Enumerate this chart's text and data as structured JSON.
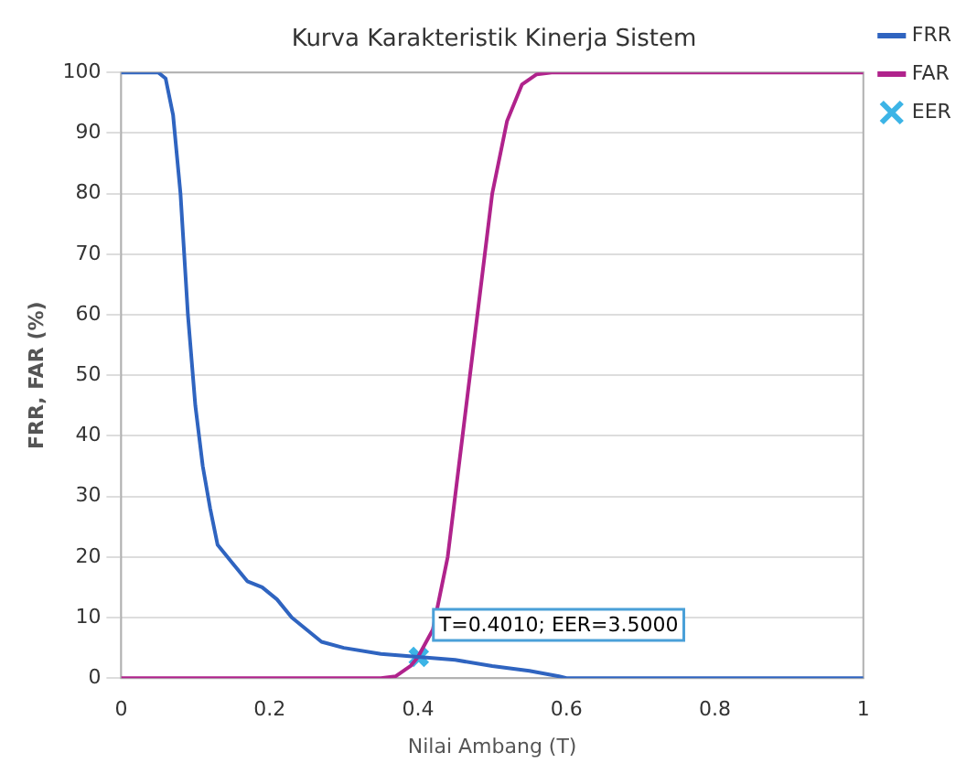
{
  "chart_data": {
    "type": "line",
    "title": "Kurva Karakteristik Kinerja Sistem",
    "xlabel": "Nilai Ambang (T)",
    "ylabel": "FRR, FAR (%)",
    "xlim": [
      0,
      1
    ],
    "xticks": [
      0,
      0.2,
      0.4,
      0.6,
      0.8,
      1
    ],
    "ylim": [
      0,
      100
    ],
    "yticks": [
      0,
      10,
      20,
      30,
      40,
      50,
      60,
      70,
      80,
      90,
      100
    ],
    "grid": "y",
    "legend": "top right",
    "marker": "none",
    "line_style": "solid",
    "series": [
      {
        "name": "FRR",
        "color": "#2f64c0",
        "x": [
          0,
          0.05,
          0.06,
          0.07,
          0.08,
          0.09,
          0.1,
          0.11,
          0.12,
          0.13,
          0.15,
          0.17,
          0.19,
          0.21,
          0.23,
          0.25,
          0.27,
          0.3,
          0.35,
          0.4,
          0.45,
          0.5,
          0.55,
          0.59,
          0.6,
          1
        ],
        "values": [
          100,
          100,
          99,
          93,
          80,
          60,
          45,
          35,
          28,
          22,
          19,
          16,
          15,
          13,
          10,
          8,
          6,
          5,
          4,
          3.5,
          3,
          2,
          1.2,
          0.3,
          0,
          0
        ]
      },
      {
        "name": "FAR",
        "color": "#b0238c",
        "x": [
          0,
          0.35,
          0.37,
          0.39,
          0.4,
          0.42,
          0.44,
          0.46,
          0.48,
          0.5,
          0.52,
          0.54,
          0.56,
          0.58,
          1
        ],
        "values": [
          0,
          0,
          0.3,
          2,
          3.5,
          8,
          20,
          40,
          60,
          80,
          92,
          98,
          99.7,
          100,
          100
        ]
      },
      {
        "name": "EER",
        "type": "scatter",
        "marker": "cross",
        "color": "#3cb4e6",
        "x": [
          0.401
        ],
        "values": [
          3.5
        ]
      }
    ],
    "annotations": [
      {
        "text": "T=0.4010; EER=3.5000",
        "x": 0.401,
        "y": 3.5
      }
    ]
  }
}
